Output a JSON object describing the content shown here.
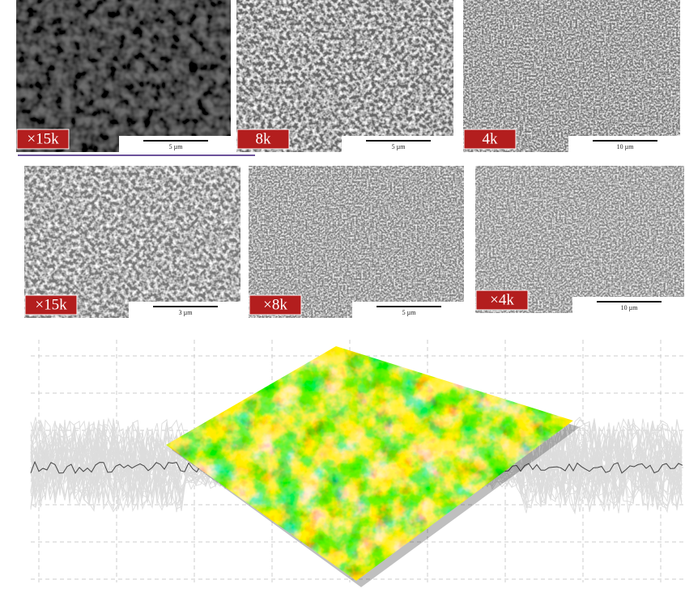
{
  "panels": [
    {
      "label": "×15k",
      "scale": "5 µm"
    },
    {
      "label": "8k",
      "scale": "5 µm"
    },
    {
      "label": "4k",
      "scale": "10 µm"
    },
    {
      "label": "×15k",
      "scale": "3 µm"
    },
    {
      "label": "×8k",
      "scale": "5 µm"
    },
    {
      "label": "×4k",
      "scale": "10 µm"
    }
  ]
}
